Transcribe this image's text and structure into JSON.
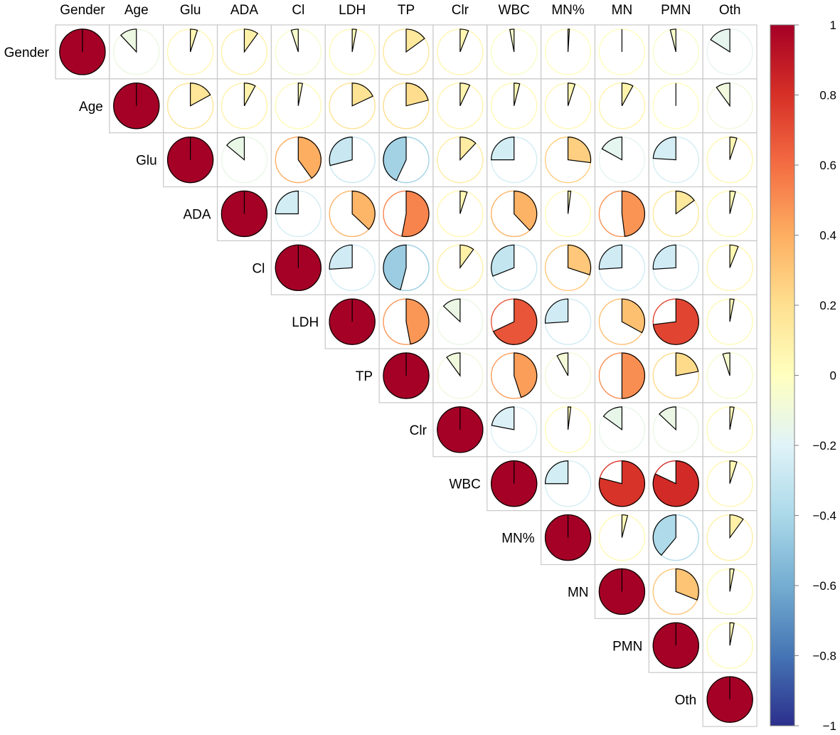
{
  "chart_data": {
    "type": "correlation-pie-matrix",
    "variables": [
      "Gender",
      "Age",
      "Glu",
      "ADA",
      "Cl",
      "LDH",
      "TP",
      "Clr",
      "WBC",
      "MN%",
      "MN",
      "PMN",
      "Oth"
    ],
    "matrix": [
      [
        1.0,
        -0.12,
        0.05,
        0.1,
        -0.05,
        0.03,
        0.15,
        0.06,
        -0.03,
        0.01,
        0.0,
        -0.04,
        -0.16
      ],
      [
        -0.12,
        1.0,
        0.17,
        0.08,
        0.03,
        0.18,
        0.21,
        0.07,
        0.04,
        0.05,
        0.08,
        0.0,
        -0.1
      ],
      [
        0.05,
        0.17,
        1.0,
        -0.14,
        0.4,
        -0.29,
        -0.43,
        0.12,
        -0.25,
        0.27,
        -0.17,
        -0.24,
        0.05
      ],
      [
        0.1,
        0.08,
        -0.14,
        1.0,
        -0.25,
        0.37,
        0.53,
        0.05,
        0.38,
        0.02,
        0.48,
        0.15,
        0.04
      ],
      [
        -0.05,
        0.03,
        0.4,
        -0.25,
        1.0,
        -0.26,
        -0.46,
        0.1,
        -0.31,
        0.3,
        -0.26,
        -0.26,
        0.06
      ],
      [
        0.03,
        0.18,
        -0.29,
        0.37,
        -0.26,
        1.0,
        0.47,
        -0.13,
        0.68,
        -0.26,
        0.33,
        0.73,
        0.03
      ],
      [
        0.15,
        0.21,
        -0.43,
        0.53,
        -0.46,
        0.47,
        1.0,
        -0.1,
        0.45,
        -0.08,
        0.5,
        0.22,
        -0.05
      ],
      [
        0.06,
        0.07,
        0.12,
        0.05,
        0.1,
        -0.13,
        -0.1,
        1.0,
        -0.22,
        0.02,
        -0.15,
        -0.13,
        0.03
      ],
      [
        -0.03,
        0.04,
        -0.25,
        0.38,
        -0.31,
        0.68,
        0.45,
        -0.22,
        1.0,
        -0.25,
        0.79,
        0.82,
        0.05
      ],
      [
        0.01,
        0.05,
        0.27,
        0.02,
        0.3,
        -0.26,
        -0.08,
        0.02,
        -0.25,
        1.0,
        0.04,
        -0.39,
        0.1
      ],
      [
        0.0,
        0.08,
        -0.17,
        0.48,
        -0.26,
        0.33,
        0.5,
        -0.15,
        0.79,
        0.04,
        1.0,
        0.31,
        0.03
      ],
      [
        -0.04,
        0.0,
        -0.24,
        0.15,
        -0.26,
        0.73,
        0.22,
        -0.13,
        0.82,
        -0.39,
        0.31,
        1.0,
        0.03
      ],
      [
        -0.16,
        -0.1,
        0.05,
        0.04,
        0.06,
        0.03,
        -0.05,
        0.03,
        0.05,
        0.1,
        0.03,
        0.03,
        1.0
      ]
    ],
    "layout_shape": "upper-triangle",
    "colorbar": {
      "ticks": [
        "1",
        "0.8",
        "0.6",
        "0.4",
        "0.2",
        "0",
        "−0.2",
        "−0.4",
        "−0.6",
        "−0.8",
        "−1"
      ],
      "tick_values": [
        1,
        0.8,
        0.6,
        0.4,
        0.2,
        0,
        -0.2,
        -0.4,
        -0.6,
        -0.8,
        -1
      ],
      "range": [
        -1,
        1
      ],
      "colors_low_to_high": [
        "#2C2F8C",
        "#4575B4",
        "#74ADD1",
        "#ABD9E9",
        "#E0F3F8",
        "#FFFFBF",
        "#FEE090",
        "#FDAE61",
        "#F46D43",
        "#D73027",
        "#A50026"
      ]
    },
    "grid": true,
    "legend": "colorbar-right"
  }
}
